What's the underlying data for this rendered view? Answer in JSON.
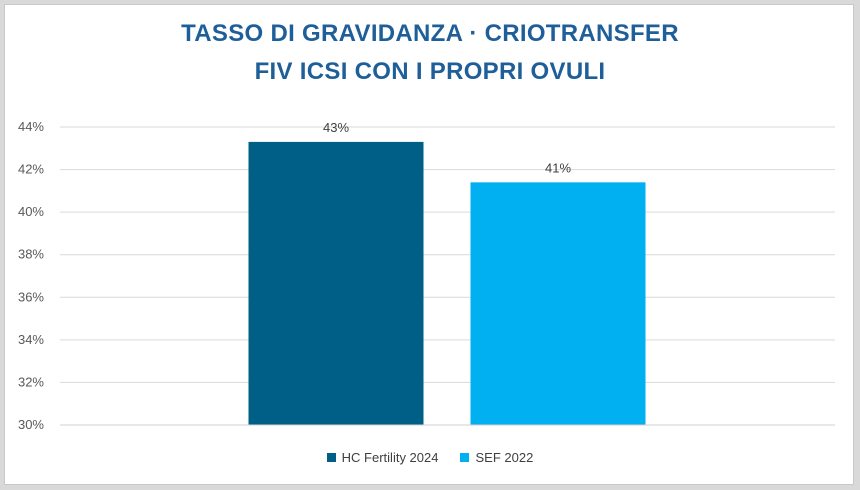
{
  "title_line1": "TASSO DI GRAVIDANZA · CRIOTRANSFER",
  "title_line2": "FIV ICSI CON I PROPRI OVULI",
  "chart_data": {
    "type": "bar",
    "categories": [
      "HC Fertility 2024",
      "SEF 2022"
    ],
    "values": [
      43.3,
      41.4
    ],
    "data_labels": [
      "43%",
      "41%"
    ],
    "colors": [
      "#005f86",
      "#00b0f0"
    ],
    "ylim": [
      30,
      44
    ],
    "yticks": [
      30,
      32,
      34,
      36,
      38,
      40,
      42,
      44
    ],
    "ytick_labels": [
      "30%",
      "32%",
      "34%",
      "36%",
      "38%",
      "40%",
      "42%",
      "44%"
    ],
    "grid": true,
    "legend_position": "bottom"
  }
}
